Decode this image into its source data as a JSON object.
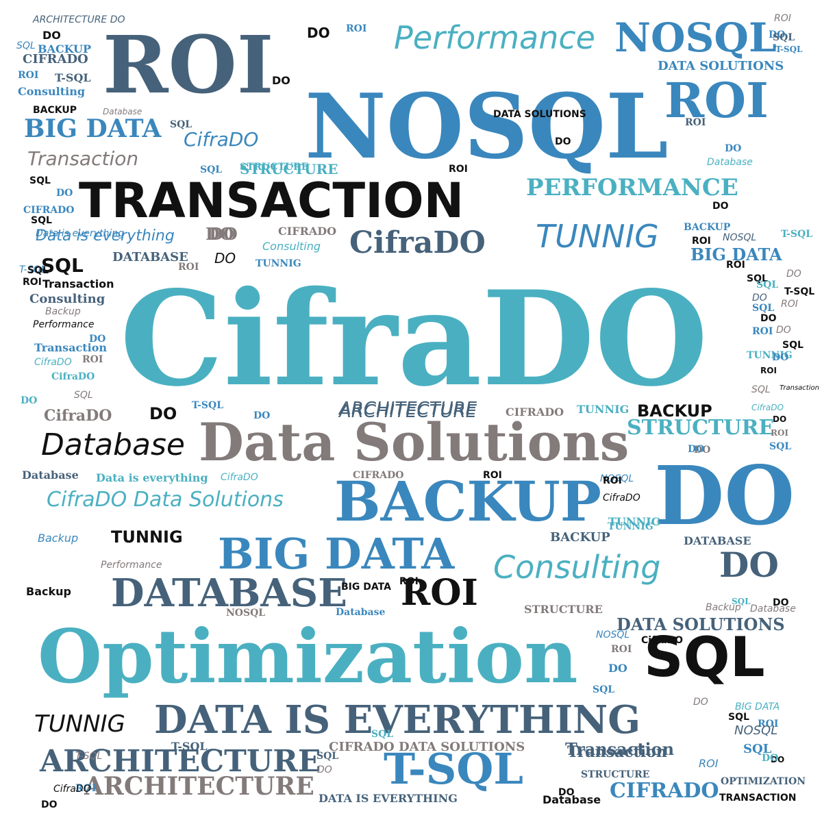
{
  "colors": {
    "teal": "#4ab0c1",
    "blue": "#3a87bd",
    "slate": "#46627a",
    "gray": "#837a7a",
    "black": "#111111"
  },
  "words": [
    {
      "text": "CifraDO",
      "color": "teal",
      "style": "slab"
    },
    {
      "text": "NOSQL",
      "color": "blue",
      "style": "slab"
    },
    {
      "text": "ROI",
      "color": "slate",
      "style": "slab"
    },
    {
      "text": "Optimization",
      "color": "teal",
      "style": "slab"
    },
    {
      "text": "Data Solutions",
      "color": "gray",
      "style": "slab"
    },
    {
      "text": "TRANSACTION",
      "color": "black",
      "style": "bold"
    },
    {
      "text": "DO",
      "color": "blue",
      "style": "slab"
    },
    {
      "text": "BACKUP",
      "color": "blue",
      "style": "slab"
    },
    {
      "text": "BIG DATA",
      "color": "blue",
      "style": "slab"
    },
    {
      "text": "DATABASE",
      "color": "slate",
      "style": "slab"
    },
    {
      "text": "SQL",
      "color": "black",
      "style": "bold"
    },
    {
      "text": "DATA IS  EVERYTHING",
      "color": "slate",
      "style": "slab"
    },
    {
      "text": "T-SQL",
      "color": "blue",
      "style": "slab"
    },
    {
      "text": "ARCHITECTURE",
      "color": "slate",
      "style": "slab"
    },
    {
      "text": "ARCHITECTURE",
      "color": "gray",
      "style": "slab"
    },
    {
      "text": "ROI",
      "color": "blue",
      "style": "slab"
    },
    {
      "text": "NOSQL",
      "color": "blue",
      "style": "slab"
    },
    {
      "text": "Performance",
      "color": "teal",
      "style": "hand"
    },
    {
      "text": "CifraDO",
      "color": "slate",
      "style": "slab"
    },
    {
      "text": "PERFORMANCE",
      "color": "teal",
      "style": "slab"
    },
    {
      "text": "TUNNIG",
      "color": "blue",
      "style": "hand"
    },
    {
      "text": "Consulting",
      "color": "teal",
      "style": "hand"
    },
    {
      "text": "DO",
      "color": "slate",
      "style": "slab"
    },
    {
      "text": "ROI",
      "color": "black",
      "style": "slab"
    },
    {
      "text": "Database",
      "color": "black",
      "style": "hand"
    },
    {
      "text": "STRUCTURE",
      "color": "teal",
      "style": "slab"
    },
    {
      "text": "TUNNIG",
      "color": "black",
      "style": "hand"
    },
    {
      "text": "CifraDO Data Solutions",
      "color": "teal",
      "style": "hand"
    },
    {
      "text": "Transaction",
      "color": "gray",
      "style": "hand"
    },
    {
      "text": "BIG DATA",
      "color": "blue",
      "style": "slab"
    },
    {
      "text": "BIG DATA",
      "color": "blue",
      "style": "slab"
    },
    {
      "text": "DATA SOLUTIONS",
      "color": "slate",
      "style": "slab"
    },
    {
      "text": "ARCHITECTURE",
      "color": "slate",
      "style": "hand"
    },
    {
      "text": "Transaction",
      "color": "slate",
      "style": "slab"
    },
    {
      "text": "CIFRADO",
      "color": "blue",
      "style": "slab"
    },
    {
      "text": "Data is  everything",
      "color": "blue",
      "style": "hand"
    },
    {
      "text": "BACKUP",
      "color": "black",
      "style": "bold"
    },
    {
      "text": "TUNNIG",
      "color": "black",
      "style": "bold"
    },
    {
      "text": "SQL",
      "color": "black",
      "style": "bold"
    },
    {
      "text": "DATA SOLUTIONS",
      "color": "blue",
      "style": "slab"
    },
    {
      "text": "STRUCTURE",
      "color": "teal",
      "style": "slab"
    },
    {
      "text": "CifraDO",
      "color": "gray",
      "style": "slab"
    },
    {
      "text": "CIFRADO DATA SOLUTIONS",
      "color": "gray",
      "style": "slab"
    },
    {
      "text": "DO",
      "color": "black",
      "style": "bold"
    },
    {
      "text": "ROI",
      "color": "black",
      "style": "bold"
    },
    {
      "text": "DO",
      "color": "black",
      "style": "bold"
    },
    {
      "text": "DO",
      "color": "gray",
      "style": "slab"
    },
    {
      "text": "ARCHITECTURE DO",
      "color": "slate",
      "style": "hand"
    },
    {
      "text": "SQL",
      "color": "blue",
      "style": "hand"
    },
    {
      "text": "ROI",
      "color": "blue",
      "style": "slab"
    },
    {
      "text": "DO",
      "color": "blue",
      "style": "slab"
    },
    {
      "text": "DO",
      "color": "black",
      "style": "bold"
    },
    {
      "text": "ROI",
      "color": "black",
      "style": "bold"
    },
    {
      "text": "BACKUP",
      "color": "blue",
      "style": "slab"
    },
    {
      "text": "CIFRADO",
      "color": "slate",
      "style": "slab"
    },
    {
      "text": "ROI",
      "color": "blue",
      "style": "slab"
    },
    {
      "text": "T-SQL",
      "color": "slate",
      "style": "slab"
    },
    {
      "text": "Consulting",
      "color": "blue",
      "style": "slab"
    },
    {
      "text": "BACKUP",
      "color": "black",
      "style": "bold"
    },
    {
      "text": "Database",
      "color": "gray",
      "style": "hand"
    },
    {
      "text": "SQL",
      "color": "slate",
      "style": "slab"
    },
    {
      "text": "CifraDO",
      "color": "blue",
      "style": "hand"
    },
    {
      "text": "SQL",
      "color": "blue",
      "style": "slab"
    },
    {
      "text": "STRUCTURE",
      "color": "teal",
      "style": "slab"
    },
    {
      "text": "SQL",
      "color": "black",
      "style": "bold"
    },
    {
      "text": "DO",
      "color": "blue",
      "style": "slab"
    },
    {
      "text": "CIFRADO",
      "color": "blue",
      "style": "slab"
    },
    {
      "text": "SQL",
      "color": "black",
      "style": "bold"
    },
    {
      "text": "Data is  everything",
      "color": "blue",
      "style": "hand"
    },
    {
      "text": "DO",
      "color": "gray",
      "style": "slab"
    },
    {
      "text": "CIFRADO",
      "color": "gray",
      "style": "slab"
    },
    {
      "text": "Consulting",
      "color": "teal",
      "style": "hand"
    },
    {
      "text": "DATABASE",
      "color": "slate",
      "style": "slab"
    },
    {
      "text": "DO",
      "color": "black",
      "style": "hand"
    },
    {
      "text": "TUNNIG",
      "color": "blue",
      "style": "slab"
    },
    {
      "text": "ROI",
      "color": "gray",
      "style": "slab"
    },
    {
      "text": "T-SQL",
      "color": "blue",
      "style": "hand"
    },
    {
      "text": "SQL",
      "color": "black",
      "style": "bold"
    },
    {
      "text": "ROI",
      "color": "black",
      "style": "bold"
    },
    {
      "text": "Transaction",
      "color": "black",
      "style": "bold"
    },
    {
      "text": "Consulting",
      "color": "slate",
      "style": "slab"
    },
    {
      "text": "Backup",
      "color": "gray",
      "style": "hand"
    },
    {
      "text": "Performance",
      "color": "black",
      "style": "hand"
    },
    {
      "text": "DO",
      "color": "blue",
      "style": "slab"
    },
    {
      "text": "Transaction",
      "color": "blue",
      "style": "slab"
    },
    {
      "text": "CifraDO",
      "color": "teal",
      "style": "hand"
    },
    {
      "text": "ROI",
      "color": "gray",
      "style": "slab"
    },
    {
      "text": "CifraDO",
      "color": "teal",
      "style": "slab"
    },
    {
      "text": "SQL",
      "color": "gray",
      "style": "hand"
    },
    {
      "text": "DO",
      "color": "teal",
      "style": "slab"
    },
    {
      "text": "ARCHITECTURE",
      "color": "slate",
      "style": "hand"
    },
    {
      "text": "CIFRADO",
      "color": "gray",
      "style": "slab"
    },
    {
      "text": "TUNNIG",
      "color": "teal",
      "style": "slab"
    },
    {
      "text": "DO",
      "color": "black",
      "style": "bold"
    },
    {
      "text": "T-SQL",
      "color": "blue",
      "style": "slab"
    },
    {
      "text": "Database",
      "color": "slate",
      "style": "slab"
    },
    {
      "text": "Data is  everything",
      "color": "teal",
      "style": "slab"
    },
    {
      "text": "CifraDO",
      "color": "teal",
      "style": "hand"
    },
    {
      "text": "NOSQL",
      "color": "blue",
      "style": "hand"
    },
    {
      "text": "CIFRADO",
      "color": "gray",
      "style": "slab"
    },
    {
      "text": "ROI",
      "color": "black",
      "style": "bold"
    },
    {
      "text": "TUNNIG",
      "color": "teal",
      "style": "slab"
    },
    {
      "text": "BACKUP",
      "color": "slate",
      "style": "slab"
    },
    {
      "text": "Backup",
      "color": "blue",
      "style": "hand"
    },
    {
      "text": "DATABASE",
      "color": "slate",
      "style": "slab"
    },
    {
      "text": "CifraDO",
      "color": "black",
      "style": "bold"
    },
    {
      "text": "T-SQL",
      "color": "slate",
      "style": "slab"
    },
    {
      "text": "Transaction",
      "color": "slate",
      "style": "slab"
    },
    {
      "text": "STRUCTURE",
      "color": "gray",
      "style": "slab"
    },
    {
      "text": "OPTIMIZATION",
      "color": "slate",
      "style": "slab"
    },
    {
      "text": "TRANSACTION",
      "color": "black",
      "style": "bold"
    },
    {
      "text": "Database",
      "color": "black",
      "style": "bold"
    },
    {
      "text": "DATA IS  EVERYTHING",
      "color": "slate",
      "style": "slab"
    },
    {
      "text": "Backup",
      "color": "black",
      "style": "bold"
    },
    {
      "text": "BIG DATA",
      "color": "black",
      "style": "bold"
    },
    {
      "text": "Database",
      "color": "blue",
      "style": "slab"
    },
    {
      "text": "NOSQL",
      "color": "gray",
      "style": "slab"
    },
    {
      "text": "BIG DATA",
      "color": "teal",
      "style": "hand"
    },
    {
      "text": "Performance",
      "color": "gray",
      "style": "hand"
    },
    {
      "text": "STRUCTURE",
      "color": "slate",
      "style": "slab"
    },
    {
      "text": "DO",
      "color": "black",
      "style": "bold"
    },
    {
      "text": "SQL",
      "color": "teal",
      "style": "slab"
    },
    {
      "text": "ROI",
      "color": "slate",
      "style": "slab"
    },
    {
      "text": "DO",
      "color": "blue",
      "style": "slab"
    },
    {
      "text": "Database",
      "color": "teal",
      "style": "hand"
    },
    {
      "text": "TUNNIG",
      "color": "teal",
      "style": "slab"
    },
    {
      "text": "CifraDO",
      "color": "black",
      "style": "hand"
    },
    {
      "text": "DATA SOLUTIONS",
      "color": "black",
      "style": "bold"
    },
    {
      "text": "DO",
      "color": "black",
      "style": "bold"
    },
    {
      "text": "ROI",
      "color": "black",
      "style": "bold"
    },
    {
      "text": "NOSQL",
      "color": "slate",
      "style": "hand"
    },
    {
      "text": "SQL",
      "color": "black",
      "style": "bold"
    },
    {
      "text": "T-SQL",
      "color": "teal",
      "style": "slab"
    },
    {
      "text": "BACKUP",
      "color": "blue",
      "style": "slab"
    },
    {
      "text": "DO",
      "color": "gray",
      "style": "slab"
    },
    {
      "text": "DO",
      "color": "black",
      "style": "bold"
    },
    {
      "text": "ROI",
      "color": "gray",
      "style": "hand"
    },
    {
      "text": "DO",
      "color": "blue",
      "style": "slab"
    },
    {
      "text": "SQL",
      "color": "slate",
      "style": "slab"
    },
    {
      "text": "T-SQL",
      "color": "blue",
      "style": "slab"
    },
    {
      "text": "DO",
      "color": "gray",
      "style": "hand"
    },
    {
      "text": "SQL",
      "color": "black",
      "style": "bold"
    },
    {
      "text": "ROI",
      "color": "blue",
      "style": "slab"
    },
    {
      "text": "NOSQL",
      "color": "slate",
      "style": "hand"
    },
    {
      "text": "SQL",
      "color": "blue",
      "style": "slab"
    },
    {
      "text": "DO",
      "color": "black",
      "style": "bold"
    },
    {
      "text": "ROI",
      "color": "blue",
      "style": "hand"
    },
    {
      "text": "DO",
      "color": "teal",
      "style": "slab"
    },
    {
      "text": "ROI",
      "color": "black",
      "style": "bold"
    },
    {
      "text": "DO",
      "color": "gray",
      "style": "hand"
    },
    {
      "text": "SQL",
      "color": "teal",
      "style": "slab"
    },
    {
      "text": "T-SQL",
      "color": "black",
      "style": "bold"
    },
    {
      "text": "DO",
      "color": "slate",
      "style": "hand"
    },
    {
      "text": "ROI",
      "color": "gray",
      "style": "hand"
    },
    {
      "text": "SQL",
      "color": "blue",
      "style": "slab"
    },
    {
      "text": "DO",
      "color": "black",
      "style": "bold"
    },
    {
      "text": "ROI",
      "color": "blue",
      "style": "slab"
    },
    {
      "text": "DO",
      "color": "gray",
      "style": "hand"
    },
    {
      "text": "SQL",
      "color": "black",
      "style": "bold"
    },
    {
      "text": "TUNNIG",
      "color": "teal",
      "style": "slab"
    },
    {
      "text": "DO",
      "color": "blue",
      "style": "slab"
    },
    {
      "text": "ROI",
      "color": "black",
      "style": "bold"
    },
    {
      "text": "SQL",
      "color": "gray",
      "style": "hand"
    },
    {
      "text": "Transaction",
      "color": "black",
      "style": "hand"
    },
    {
      "text": "CifraDO",
      "color": "teal",
      "style": "hand"
    },
    {
      "text": "DO",
      "color": "black",
      "style": "bold"
    },
    {
      "text": "ROI",
      "color": "gray",
      "style": "slab"
    },
    {
      "text": "SQL",
      "color": "blue",
      "style": "slab"
    },
    {
      "text": "DO",
      "color": "blue",
      "style": "slab"
    },
    {
      "text": "ROI",
      "color": "black",
      "style": "bold"
    },
    {
      "text": "Backup",
      "color": "gray",
      "style": "hand"
    },
    {
      "text": "Database",
      "color": "gray",
      "style": "hand"
    },
    {
      "text": "DO",
      "color": "black",
      "style": "bold"
    },
    {
      "text": "SQL",
      "color": "teal",
      "style": "slab"
    },
    {
      "text": "NOSQL",
      "color": "blue",
      "style": "hand"
    },
    {
      "text": "ROI",
      "color": "gray",
      "style": "slab"
    },
    {
      "text": "DO",
      "color": "blue",
      "style": "slab"
    },
    {
      "text": "SQL",
      "color": "blue",
      "style": "slab"
    },
    {
      "text": "T-SQL",
      "color": "gray",
      "style": "hand"
    },
    {
      "text": "ROI",
      "color": "blue",
      "style": "slab"
    },
    {
      "text": "DO",
      "color": "black",
      "style": "bold"
    },
    {
      "text": "CifraDO",
      "color": "black",
      "style": "hand"
    },
    {
      "text": "SQL",
      "color": "slate",
      "style": "slab"
    },
    {
      "text": "DO",
      "color": "gray",
      "style": "hand"
    }
  ]
}
